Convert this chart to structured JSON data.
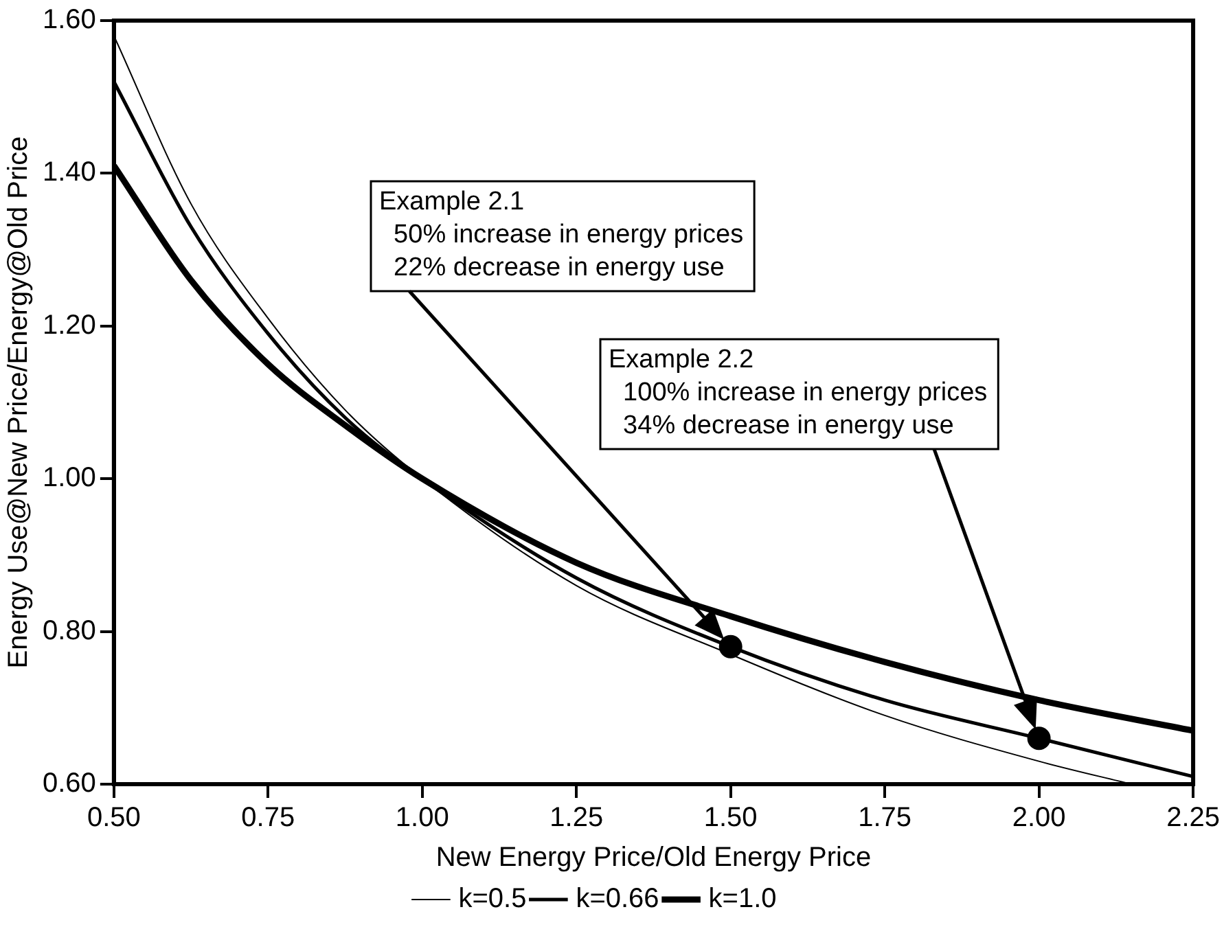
{
  "chart_data": {
    "type": "line",
    "xlabel": "New Energy Price/Old Energy Price",
    "ylabel": "Energy Use@New Price/Energy@Old Price",
    "xlim": [
      0.5,
      2.25
    ],
    "xticks": [
      {
        "value": 0.5,
        "label": "0.50"
      },
      {
        "value": 0.75,
        "label": "0.75"
      },
      {
        "value": 1,
        "label": "1.00"
      },
      {
        "value": 1.25,
        "label": "1.25"
      },
      {
        "value": 1.5,
        "label": "1.50"
      },
      {
        "value": 1.75,
        "label": "1.75"
      },
      {
        "value": 2,
        "label": "2.00"
      },
      {
        "value": 2.25,
        "label": "2.25"
      }
    ],
    "ylim": [
      0.6,
      1.6
    ],
    "yticks": [
      {
        "value": 0.6,
        "label": "0.60"
      },
      {
        "value": 0.8,
        "label": "0.80"
      },
      {
        "value": 1,
        "label": "1.00"
      },
      {
        "value": 1.2,
        "label": "1.20"
      },
      {
        "value": 1.4,
        "label": "1.40"
      },
      {
        "value": 1.6,
        "label": "1.60"
      }
    ],
    "grid": false,
    "legend": "bottom",
    "marker": "none",
    "line_style": "solid",
    "series": [
      {
        "name": "k=0.5",
        "color": "#000000",
        "x": [
          0.5,
          0.625,
          0.75,
          0.875,
          1,
          1.25,
          1.5,
          1.75,
          2,
          2.15
        ],
        "values": [
          1.58,
          1.36,
          1.21,
          1.09,
          1.0,
          0.86,
          0.77,
          0.69,
          0.63,
          0.6
        ]
      },
      {
        "name": "k=0.66",
        "color": "#000000",
        "x": [
          0.5,
          0.625,
          0.75,
          0.875,
          1,
          1.25,
          1.5,
          1.75,
          2,
          2.25
        ],
        "values": [
          1.52,
          1.33,
          1.19,
          1.08,
          1.0,
          0.87,
          0.78,
          0.71,
          0.66,
          0.61
        ]
      },
      {
        "name": "k=1.0",
        "color": "#000000",
        "x": [
          0.5,
          0.625,
          0.75,
          0.875,
          1,
          1.25,
          1.5,
          1.75,
          2,
          2.25
        ],
        "values": [
          1.41,
          1.26,
          1.15,
          1.07,
          1.0,
          0.89,
          0.82,
          0.76,
          0.71,
          0.67
        ]
      },
      {
        "type": "scatter",
        "color": "#000000",
        "marker": "circle",
        "x": [
          1.5,
          2.0
        ],
        "values": [
          0.78,
          0.66
        ]
      }
    ],
    "annotations": [
      "Example 2.1\n  50% increase in energy prices\n  22% decrease in energy use",
      "Example 2.2\n  100% increase in energy prices\n  34% decrease in energy use"
    ]
  }
}
